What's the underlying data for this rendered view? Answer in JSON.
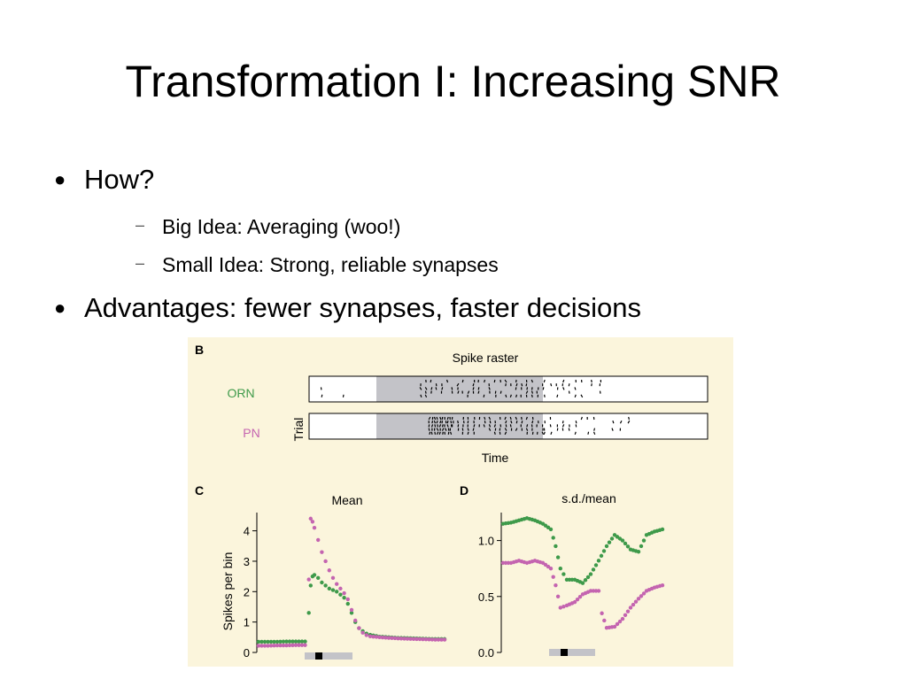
{
  "slide": {
    "title": "Transformation I: Increasing SNR",
    "bullets": [
      {
        "text": "How?",
        "sub": [
          "Big Idea: Averaging (woo!)",
          "Small Idea: Strong, reliable synapses"
        ]
      },
      {
        "text": "Advantages: fewer synapses, faster decisions",
        "sub": []
      }
    ]
  },
  "figure": {
    "panel_b": {
      "letter": "B",
      "title": "Spike raster",
      "rows": [
        "ORN",
        "PN"
      ],
      "ylabel": "Trial",
      "xlabel": "Time"
    },
    "panel_c": {
      "letter": "C"
    },
    "panel_d": {
      "letter": "D"
    }
  },
  "colors": {
    "orn": "#3e9a4a",
    "pn": "#c464b0",
    "stimulus_shade": "#c3c3c8",
    "figure_bg": "#fbf5dc"
  },
  "chart_data": [
    {
      "type": "scatter",
      "title": "Mean",
      "xlabel": "",
      "ylabel": "Spikes per bin",
      "ylim": [
        0,
        4.6
      ],
      "yticks": [
        0,
        1,
        2,
        3,
        4
      ],
      "xlim": [
        0,
        1
      ],
      "grid": false,
      "series": [
        {
          "name": "ORN",
          "color": "#3e9a4a",
          "x": [
            0.0,
            0.05,
            0.1,
            0.15,
            0.2,
            0.25,
            0.27,
            0.28,
            0.29,
            0.3,
            0.32,
            0.34,
            0.36,
            0.38,
            0.4,
            0.42,
            0.44,
            0.46,
            0.48,
            0.5,
            0.52,
            0.54,
            0.56,
            0.58,
            0.6,
            0.65,
            0.7,
            0.75,
            0.8,
            0.85,
            0.9,
            0.95,
            1.0
          ],
          "y": [
            0.35,
            0.35,
            0.35,
            0.36,
            0.36,
            0.36,
            1.3,
            2.2,
            2.5,
            2.55,
            2.45,
            2.3,
            2.2,
            2.1,
            2.05,
            2.0,
            1.9,
            1.8,
            1.6,
            1.3,
            1.0,
            0.8,
            0.7,
            0.62,
            0.58,
            0.52,
            0.5,
            0.48,
            0.47,
            0.46,
            0.45,
            0.44,
            0.44
          ]
        },
        {
          "name": "PN",
          "color": "#c464b0",
          "x": [
            0.0,
            0.05,
            0.1,
            0.15,
            0.2,
            0.25,
            0.27,
            0.28,
            0.29,
            0.3,
            0.32,
            0.34,
            0.36,
            0.38,
            0.4,
            0.42,
            0.44,
            0.46,
            0.48,
            0.5,
            0.52,
            0.54,
            0.56,
            0.58,
            0.6,
            0.65,
            0.7,
            0.75,
            0.8,
            0.85,
            0.9,
            0.95,
            1.0
          ],
          "y": [
            0.22,
            0.22,
            0.23,
            0.23,
            0.24,
            0.24,
            2.4,
            4.4,
            4.3,
            4.1,
            3.7,
            3.3,
            3.0,
            2.7,
            2.45,
            2.25,
            2.1,
            1.95,
            1.75,
            1.4,
            1.05,
            0.8,
            0.65,
            0.57,
            0.53,
            0.5,
            0.48,
            0.46,
            0.45,
            0.44,
            0.43,
            0.42,
            0.42
          ]
        }
      ]
    },
    {
      "type": "scatter",
      "title": "s.d./mean",
      "xlabel": "",
      "ylabel": "",
      "ylim": [
        0,
        1.25
      ],
      "yticks": [
        0.0,
        0.5,
        1.0
      ],
      "ytick_labels": [
        "0.0",
        "0.5",
        "1.0"
      ],
      "xlim": [
        0,
        1
      ],
      "grid": false,
      "series": [
        {
          "name": "ORN",
          "color": "#3e9a4a",
          "x": [
            0.0,
            0.05,
            0.1,
            0.15,
            0.2,
            0.25,
            0.3,
            0.33,
            0.36,
            0.4,
            0.45,
            0.5,
            0.55,
            0.6,
            0.65,
            0.7,
            0.75,
            0.8,
            0.85,
            0.9,
            0.95,
            1.0
          ],
          "y": [
            1.15,
            1.16,
            1.18,
            1.2,
            1.18,
            1.15,
            1.1,
            0.95,
            0.75,
            0.65,
            0.65,
            0.62,
            0.7,
            0.82,
            0.95,
            1.05,
            1.0,
            0.92,
            0.9,
            1.05,
            1.08,
            1.1
          ]
        },
        {
          "name": "PN",
          "color": "#c464b0",
          "x": [
            0.0,
            0.05,
            0.1,
            0.15,
            0.2,
            0.25,
            0.3,
            0.33,
            0.36,
            0.4,
            0.45,
            0.5,
            0.55,
            0.6,
            0.62,
            0.65,
            0.7,
            0.75,
            0.8,
            0.85,
            0.9,
            0.95,
            1.0
          ],
          "y": [
            0.8,
            0.8,
            0.82,
            0.8,
            0.82,
            0.8,
            0.75,
            0.6,
            0.4,
            0.42,
            0.45,
            0.52,
            0.55,
            0.55,
            0.35,
            0.22,
            0.23,
            0.3,
            0.4,
            0.48,
            0.55,
            0.58,
            0.6
          ]
        }
      ]
    }
  ]
}
